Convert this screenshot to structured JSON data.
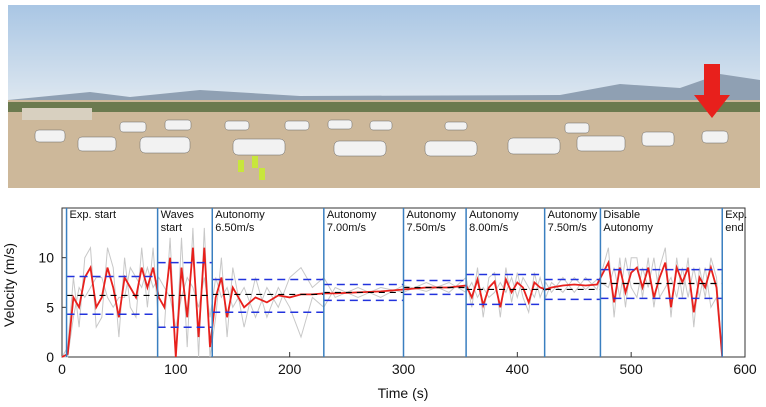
{
  "chart_data": {
    "type": "line",
    "xlabel": "Time (s)",
    "ylabel": "Velocity (m/s)",
    "xlim": [
      0,
      600
    ],
    "ylim": [
      0,
      15
    ],
    "xticks": [
      0,
      100,
      200,
      300,
      400,
      500,
      600
    ],
    "yticks": [
      0,
      5,
      10
    ],
    "events": [
      {
        "time": 4,
        "label": [
          "Exp. start"
        ]
      },
      {
        "time": 84,
        "label": [
          "Waves",
          "start"
        ]
      },
      {
        "time": 132,
        "label": [
          "Autonomy",
          "6.50m/s"
        ]
      },
      {
        "time": 230,
        "label": [
          "Autonomy",
          "7.00m/s"
        ]
      },
      {
        "time": 300,
        "label": [
          "Autonomy",
          "7.50m/s"
        ]
      },
      {
        "time": 355,
        "label": [
          "Autonomy",
          "8.00m/s"
        ]
      },
      {
        "time": 424,
        "label": [
          "Autonomy",
          "7.50m/s"
        ]
      },
      {
        "time": 473,
        "label": [
          "Disable",
          "Autonomy"
        ]
      },
      {
        "time": 580,
        "label": [
          "Exp.",
          "end"
        ]
      }
    ],
    "bands": [
      {
        "start": 4,
        "end": 84,
        "mean": 6.2,
        "low": 4.3,
        "high": 8.1
      },
      {
        "start": 84,
        "end": 132,
        "mean": 6.2,
        "low": 3.0,
        "high": 9.5
      },
      {
        "start": 132,
        "end": 230,
        "mean": 6.3,
        "low": 4.5,
        "high": 7.8
      },
      {
        "start": 230,
        "end": 300,
        "mean": 6.5,
        "low": 5.7,
        "high": 7.3
      },
      {
        "start": 300,
        "end": 355,
        "mean": 7.0,
        "low": 6.3,
        "high": 7.7
      },
      {
        "start": 355,
        "end": 424,
        "mean": 6.8,
        "low": 5.3,
        "high": 8.3
      },
      {
        "start": 424,
        "end": 473,
        "mean": 6.8,
        "low": 5.8,
        "high": 7.8
      },
      {
        "start": 473,
        "end": 580,
        "mean": 7.4,
        "low": 5.9,
        "high": 8.8
      }
    ],
    "band_color": "#2233dd",
    "mean_color": "#000000",
    "event_color": "#3a7fc0",
    "x": [
      0,
      5,
      10,
      15,
      20,
      25,
      30,
      35,
      40,
      45,
      50,
      55,
      60,
      65,
      70,
      75,
      80,
      85,
      90,
      95,
      100,
      105,
      110,
      115,
      120,
      125,
      130,
      135,
      140,
      145,
      150,
      160,
      170,
      180,
      190,
      200,
      210,
      220,
      230,
      240,
      260,
      280,
      300,
      320,
      340,
      355,
      360,
      365,
      370,
      375,
      380,
      385,
      390,
      395,
      400,
      405,
      410,
      415,
      420,
      425,
      430,
      440,
      450,
      460,
      470,
      480,
      485,
      490,
      495,
      500,
      505,
      510,
      515,
      520,
      525,
      530,
      535,
      540,
      545,
      550,
      555,
      560,
      565,
      570,
      575,
      580
    ],
    "series": [
      {
        "color": "#c8c8c8",
        "values": [
          0,
          1,
          8,
          3,
          10,
          11,
          3,
          4,
          11,
          9,
          2,
          10,
          5,
          4,
          11,
          5,
          11,
          3,
          3,
          12,
          0,
          12,
          1,
          13,
          0,
          13,
          0,
          4,
          10,
          2,
          9,
          3,
          8,
          4,
          7,
          5,
          2,
          6,
          5,
          7,
          6,
          7,
          6.5,
          7.5,
          6.5,
          8,
          5,
          9,
          4,
          8,
          8.5,
          4,
          9,
          5.5,
          8.5,
          6,
          4.5,
          8.5,
          6,
          7.5,
          6.5,
          8,
          6.5,
          8,
          6.8,
          11,
          4,
          10,
          5,
          10,
          10,
          6,
          10,
          5,
          9,
          11,
          4,
          10,
          6,
          10,
          3,
          9,
          6,
          10,
          8,
          0
        ]
      },
      {
        "color": "#c8c8c8",
        "values": [
          0,
          0,
          4,
          7,
          6,
          7,
          8,
          8,
          6,
          5,
          6,
          6,
          9,
          8,
          7,
          9,
          7,
          8,
          7,
          6,
          3,
          6,
          8,
          7,
          5,
          8,
          4,
          8,
          6,
          7,
          5,
          7,
          4,
          7,
          5,
          8,
          9,
          7,
          8,
          6,
          7,
          6,
          7.2,
          6.6,
          7.5,
          6.5,
          7.5,
          6,
          7,
          6,
          6.5,
          7.5,
          6.5,
          8,
          6,
          8,
          7,
          6,
          8,
          6,
          7.5,
          6.5,
          8,
          6.8,
          7.8,
          7,
          9,
          6,
          10,
          7,
          6,
          9,
          7,
          10,
          6,
          7,
          8,
          6,
          9,
          6,
          9,
          6,
          9,
          5,
          6,
          0
        ]
      },
      {
        "color": "#e8201c",
        "values": [
          0,
          0.3,
          6,
          5,
          8,
          9,
          5,
          6,
          9,
          7,
          4,
          8,
          7,
          6,
          9,
          7,
          9,
          6,
          5,
          10,
          0,
          9,
          4,
          11,
          2,
          11,
          1,
          6,
          8,
          4,
          7,
          5,
          6,
          5.5,
          6.2,
          6.0,
          6.3,
          6.3,
          6.4,
          6.4,
          6.5,
          6.6,
          6.8,
          7.0,
          7.0,
          7.2,
          6.0,
          7.8,
          5.2,
          7.0,
          7.6,
          5.0,
          7.8,
          6.5,
          7.5,
          7.0,
          5.5,
          7.5,
          7.0,
          6.8,
          7.0,
          7.2,
          7.3,
          7.2,
          7.3,
          9.5,
          5.5,
          9.0,
          6.5,
          8.5,
          9.0,
          7.0,
          9.0,
          6.0,
          8.0,
          9.5,
          5.0,
          9.0,
          7.5,
          9.0,
          4.5,
          8.0,
          7.0,
          9.0,
          7.0,
          0
        ]
      }
    ]
  }
}
